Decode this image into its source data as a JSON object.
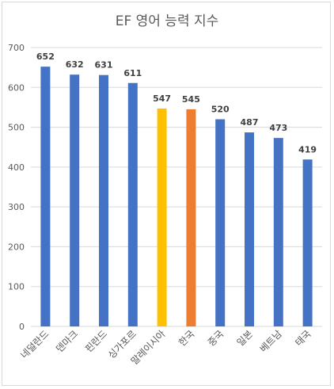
{
  "chart_data": {
    "type": "bar",
    "title": "EF 영어 능력 지수",
    "xlabel": "",
    "ylabel": "",
    "ylim": [
      0,
      700
    ],
    "yticks": [
      0,
      100,
      200,
      300,
      400,
      500,
      600,
      700
    ],
    "grid": true,
    "legend": "none",
    "categories": [
      "네덜란드",
      "덴마크",
      "핀란드",
      "싱가포르",
      "말레이시아",
      "한국",
      "중국",
      "일본",
      "베트남",
      "태국"
    ],
    "values": [
      652,
      632,
      631,
      611,
      547,
      545,
      520,
      487,
      473,
      419
    ],
    "colors": [
      "#4472C4",
      "#4472C4",
      "#4472C4",
      "#4472C4",
      "#FFC000",
      "#ED7D31",
      "#4472C4",
      "#4472C4",
      "#4472C4",
      "#4472C4"
    ]
  }
}
